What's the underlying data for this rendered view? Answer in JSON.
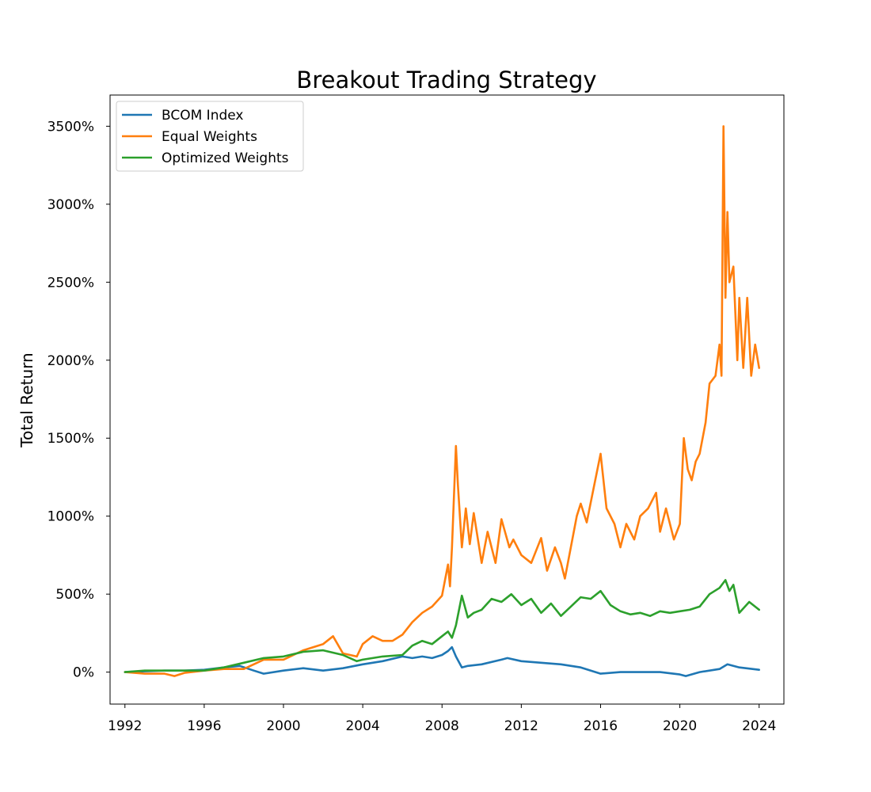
{
  "chart_data": {
    "type": "line",
    "title": "Breakout Trading Strategy",
    "xlabel": "",
    "ylabel": "Total Return",
    "xlim": [
      1991.25,
      2025.25
    ],
    "ylim": [
      -205,
      3700
    ],
    "x_ticks": [
      "1992",
      "1996",
      "2000",
      "2004",
      "2008",
      "2012",
      "2016",
      "2020",
      "2024"
    ],
    "y_ticks": [
      "0%",
      "500%",
      "1000%",
      "1500%",
      "2000%",
      "2500%",
      "3000%",
      "3500%"
    ],
    "grid": false,
    "legend_position": "upper-left",
    "series": [
      {
        "name": "BCOM Index",
        "color": "#1f77b4",
        "x": [
          1992.0,
          1993.0,
          1994.0,
          1995.0,
          1996.0,
          1997.0,
          1997.8,
          1998.5,
          1999.0,
          2000.0,
          2001.0,
          2002.0,
          2003.0,
          2004.0,
          2005.0,
          2006.0,
          2006.5,
          2007.0,
          2007.5,
          2008.0,
          2008.3,
          2008.5,
          2008.7,
          2009.0,
          2009.3,
          2010.0,
          2011.0,
          2011.3,
          2012.0,
          2013.0,
          2014.0,
          2015.0,
          2016.0,
          2017.0,
          2018.0,
          2019.0,
          2020.0,
          2020.3,
          2021.0,
          2022.0,
          2022.4,
          2023.0,
          2024.0
        ],
        "y": [
          0,
          5,
          10,
          10,
          15,
          30,
          40,
          10,
          -10,
          10,
          25,
          10,
          25,
          50,
          70,
          100,
          90,
          100,
          90,
          110,
          135,
          160,
          100,
          30,
          40,
          50,
          80,
          90,
          70,
          60,
          50,
          30,
          -10,
          0,
          0,
          0,
          -15,
          -25,
          0,
          20,
          50,
          30,
          15
        ]
      },
      {
        "name": "Equal Weights",
        "color": "#ff7f0e",
        "x": [
          1992.0,
          1993.0,
          1994.0,
          1994.5,
          1995.0,
          1996.0,
          1997.0,
          1998.0,
          1999.0,
          2000.0,
          2001.0,
          2002.0,
          2002.5,
          2003.0,
          2003.7,
          2004.0,
          2004.5,
          2005.0,
          2005.5,
          2006.0,
          2006.5,
          2007.0,
          2007.5,
          2008.0,
          2008.3,
          2008.4,
          2008.5,
          2008.7,
          2008.8,
          2009.0,
          2009.2,
          2009.4,
          2009.6,
          2010.0,
          2010.3,
          2010.7,
          2011.0,
          2011.4,
          2011.6,
          2012.0,
          2012.5,
          2013.0,
          2013.3,
          2013.7,
          2014.0,
          2014.2,
          2014.5,
          2014.8,
          2015.0,
          2015.3,
          2015.6,
          2016.0,
          2016.3,
          2016.7,
          2017.0,
          2017.3,
          2017.7,
          2018.0,
          2018.4,
          2018.8,
          2019.0,
          2019.3,
          2019.7,
          2020.0,
          2020.2,
          2020.4,
          2020.6,
          2020.8,
          2021.0,
          2021.3,
          2021.5,
          2021.8,
          2022.0,
          2022.1,
          2022.2,
          2022.3,
          2022.4,
          2022.5,
          2022.7,
          2022.9,
          2023.0,
          2023.2,
          2023.4,
          2023.6,
          2023.8,
          2024.0
        ],
        "y": [
          0,
          -10,
          -10,
          -25,
          -5,
          10,
          20,
          20,
          80,
          80,
          140,
          180,
          230,
          120,
          100,
          180,
          230,
          200,
          200,
          240,
          320,
          380,
          420,
          490,
          690,
          550,
          800,
          1450,
          1200,
          800,
          1050,
          820,
          1020,
          700,
          900,
          700,
          980,
          800,
          850,
          750,
          700,
          860,
          650,
          800,
          700,
          600,
          800,
          1000,
          1080,
          960,
          1150,
          1400,
          1050,
          950,
          800,
          950,
          850,
          1000,
          1050,
          1150,
          900,
          1050,
          850,
          950,
          1500,
          1300,
          1230,
          1350,
          1400,
          1600,
          1850,
          1900,
          2100,
          1900,
          3500,
          2400,
          2950,
          2500,
          2600,
          2000,
          2400,
          1950,
          2400,
          1900,
          2100,
          1950
        ]
      },
      {
        "name": "Optimized Weights",
        "color": "#2ca02c",
        "x": [
          1992.0,
          1993.0,
          1994.0,
          1995.0,
          1996.0,
          1997.0,
          1998.0,
          1999.0,
          2000.0,
          2001.0,
          2002.0,
          2003.0,
          2003.7,
          2004.0,
          2005.0,
          2006.0,
          2006.5,
          2007.0,
          2007.5,
          2008.0,
          2008.3,
          2008.5,
          2008.7,
          2009.0,
          2009.3,
          2009.6,
          2010.0,
          2010.5,
          2011.0,
          2011.5,
          2012.0,
          2012.5,
          2013.0,
          2013.5,
          2014.0,
          2014.5,
          2015.0,
          2015.5,
          2016.0,
          2016.5,
          2017.0,
          2017.5,
          2018.0,
          2018.5,
          2019.0,
          2019.5,
          2020.0,
          2020.5,
          2021.0,
          2021.5,
          2022.0,
          2022.3,
          2022.5,
          2022.7,
          2023.0,
          2023.5,
          2024.0
        ],
        "y": [
          0,
          10,
          10,
          10,
          10,
          30,
          60,
          90,
          100,
          130,
          140,
          110,
          70,
          80,
          100,
          110,
          170,
          200,
          180,
          230,
          260,
          220,
          300,
          490,
          350,
          380,
          400,
          470,
          450,
          500,
          430,
          470,
          380,
          440,
          360,
          420,
          480,
          470,
          520,
          430,
          390,
          370,
          380,
          360,
          390,
          380,
          390,
          400,
          420,
          500,
          540,
          590,
          520,
          560,
          380,
          450,
          400
        ]
      }
    ]
  }
}
